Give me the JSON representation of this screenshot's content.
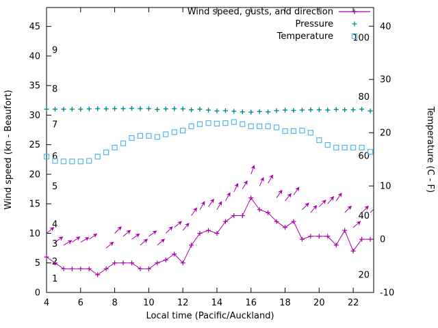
{
  "chart_data": {
    "type": "line",
    "title": "",
    "xlabel": "Local time (Pacific/Auckland)",
    "ylabel_left": "Wind speed (kn - Beaufort)",
    "ylabel_right": "Temperature (C - F)",
    "x_ticks": [
      4,
      6,
      8,
      10,
      12,
      14,
      16,
      18,
      20,
      22
    ],
    "y_left_ticks": [
      0,
      5,
      10,
      15,
      20,
      25,
      30,
      35,
      40,
      45
    ],
    "y_right_ticks": [
      -10,
      0,
      10,
      20,
      30,
      40
    ],
    "x_range": [
      4,
      23.2
    ],
    "y_left_range": [
      0,
      48.2
    ],
    "y_right_range": [
      -10,
      43.5
    ],
    "grid": false,
    "legend_position": "top-right-inside",
    "beaufort_labels": [
      {
        "label": "1",
        "kn": 2.3
      },
      {
        "label": "2",
        "kn": 5.2
      },
      {
        "label": "3",
        "kn": 8.2
      },
      {
        "label": "4",
        "kn": 11.5
      },
      {
        "label": "5",
        "kn": 17.9
      },
      {
        "label": "6",
        "kn": 23
      },
      {
        "label": "7",
        "kn": 28.4
      },
      {
        "label": "8",
        "kn": 34.4
      },
      {
        "label": "9",
        "kn": 41
      }
    ],
    "fahrenheit_labels": [
      {
        "label": "20",
        "c": -6.7
      },
      {
        "label": "40",
        "c": 4.4
      },
      {
        "label": "60",
        "c": 15.6
      },
      {
        "label": "80",
        "c": 26.7
      },
      {
        "label": "100",
        "c": 37.8
      }
    ],
    "legend": [
      {
        "label": "Wind speed, gusts, and direction",
        "marker": "errorbar",
        "color": "#aa00aa"
      },
      {
        "label": "Pressure",
        "marker": "plus",
        "color": "#008b8b"
      },
      {
        "label": "Temperature",
        "marker": "square",
        "color": "#56b4e9"
      }
    ],
    "colors": {
      "wind": "#aa00aa",
      "pressure": "#008b8b",
      "temperature": "#56b4e9"
    },
    "x": [
      4,
      4.5,
      5,
      5.5,
      6,
      6.5,
      7,
      7.5,
      8,
      8.5,
      9,
      9.5,
      10,
      10.5,
      11,
      11.5,
      12,
      12.5,
      13,
      13.5,
      14,
      14.5,
      15,
      15.5,
      16,
      16.5,
      17,
      17.5,
      18,
      18.5,
      19,
      19.5,
      20,
      20.5,
      21,
      21.5,
      22,
      22.5,
      23
    ],
    "series": [
      {
        "name": "wind_speed_kn",
        "axis": "left",
        "values": [
          6,
          5,
          4,
          4,
          4,
          4,
          3,
          4,
          5,
          5,
          5,
          4,
          4,
          5,
          5.5,
          6.5,
          5,
          8,
          10,
          10.5,
          10,
          12,
          13,
          13,
          16,
          14,
          13.5,
          12,
          11,
          12,
          9,
          9.5,
          9.5,
          9.5,
          8,
          10.5,
          7,
          9,
          9
        ]
      },
      {
        "name": "gusts_kn",
        "axis": "left",
        "values": [
          10,
          8.5,
          8,
          8.5,
          8.5,
          9,
          null,
          7.5,
          10,
          9.5,
          9,
          8,
          9.5,
          8,
          10,
          11,
          10.5,
          13,
          14,
          14.5,
          14,
          15.5,
          17,
          17.5,
          20,
          18,
          18.5,
          16,
          15.5,
          16.5,
          14,
          13.5,
          14.5,
          15,
          15.5,
          13.5,
          11,
          13.5,
          13.5
        ],
        "direction_deg": [
          40,
          35,
          30,
          35,
          30,
          35,
          null,
          40,
          45,
          40,
          35,
          40,
          35,
          40,
          45,
          40,
          50,
          55,
          60,
          55,
          60,
          60,
          65,
          60,
          70,
          65,
          60,
          55,
          50,
          55,
          45,
          50,
          45,
          50,
          55,
          45,
          40,
          45,
          45
        ]
      },
      {
        "name": "pressure",
        "axis": "left",
        "values": [
          31.0,
          31.0,
          31.0,
          31.0,
          31.0,
          31.05,
          31.1,
          31.05,
          31.1,
          31.1,
          31.15,
          31.1,
          31.1,
          30.95,
          31.05,
          31.1,
          31.05,
          30.9,
          31.0,
          30.85,
          30.7,
          30.75,
          30.65,
          30.55,
          30.5,
          30.6,
          30.55,
          30.75,
          30.85,
          30.8,
          30.85,
          30.9,
          30.9,
          30.85,
          30.95,
          30.9,
          30.9,
          31.0,
          30.7
        ]
      },
      {
        "name": "temperature_c",
        "axis": "right",
        "values": [
          15.5,
          14.7,
          14.6,
          14.6,
          14.6,
          14.7,
          15.5,
          16.3,
          17.2,
          18.0,
          19.0,
          19.4,
          19.4,
          19.2,
          19.7,
          20.1,
          20.4,
          21.2,
          21.6,
          21.8,
          21.7,
          21.8,
          22.0,
          21.6,
          21.2,
          21.2,
          21.2,
          21.0,
          20.3,
          20.3,
          20.4,
          20.0,
          18.6,
          17.7,
          17.2,
          17.2,
          17.2,
          17.2,
          16.4
        ]
      }
    ]
  }
}
